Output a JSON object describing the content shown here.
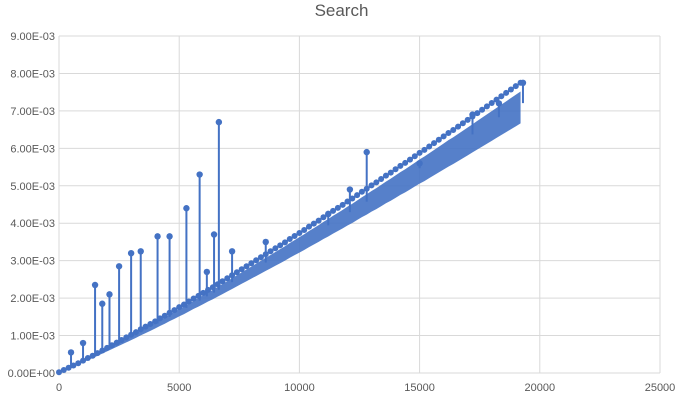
{
  "chart_data": {
    "type": "scatter",
    "title": "Search",
    "xlabel": "",
    "ylabel": "",
    "xlim": [
      0,
      25000
    ],
    "ylim": [
      0,
      0.009
    ],
    "x_ticks": [
      0,
      5000,
      10000,
      15000,
      20000,
      25000
    ],
    "x_tick_labels": [
      "0",
      "5000",
      "10000",
      "15000",
      "20000",
      "25000"
    ],
    "y_ticks": [
      0,
      0.001,
      0.002,
      0.003,
      0.004,
      0.005,
      0.006,
      0.007,
      0.008,
      0.009
    ],
    "y_tick_labels": [
      "0.00E+00",
      "1.00E-03",
      "2.00E-03",
      "3.00E-03",
      "4.00E-03",
      "5.00E-03",
      "6.00E-03",
      "7.00E-03",
      "8.00E-03",
      "9.00E-03"
    ],
    "grid": true,
    "legend": "none",
    "marker": "circle",
    "line_connected": true,
    "color": "#4472C4",
    "series": [
      {
        "x": [
          0,
          200,
          400,
          600,
          800,
          1000,
          1200,
          1400,
          1600,
          1800,
          2000,
          2200,
          2400,
          2600,
          2800,
          3000,
          3200,
          3400,
          3600,
          3800,
          4000,
          4200,
          4400,
          4600,
          4800,
          5000,
          5200,
          5400,
          5600,
          5800,
          6000,
          6200,
          6400,
          6600,
          6800,
          7000,
          7200,
          7400,
          7600,
          7800,
          8000,
          8200,
          8400,
          8600,
          8800,
          9000,
          9200,
          9400,
          9600,
          9800,
          10000,
          10200,
          10400,
          10600,
          10800,
          11000,
          11200,
          11400,
          11600,
          11800,
          12000,
          12200,
          12400,
          12600,
          12800,
          13000,
          13200,
          13400,
          13600,
          13800,
          14000,
          14200,
          14400,
          14600,
          14800,
          15000,
          15200,
          15400,
          15600,
          15800,
          16000,
          16200,
          16400,
          16600,
          16800,
          17000,
          17200,
          17400,
          17600,
          17800,
          18000,
          18200,
          18400,
          18600,
          18800,
          19000,
          19200
        ],
        "y": [
          2e-05,
          8e-05,
          0.00014,
          0.0002,
          0.00026,
          0.00033,
          0.0004,
          0.00046,
          0.00053,
          0.0006,
          0.00067,
          0.00074,
          0.00081,
          0.00088,
          0.00095,
          0.00102,
          0.00109,
          0.00117,
          0.00124,
          0.00131,
          0.00138,
          0.00146,
          0.00153,
          0.00161,
          0.00168,
          0.00176,
          0.00183,
          0.00191,
          0.00199,
          0.00206,
          0.00214,
          0.00222,
          0.00229,
          0.00237,
          0.00245,
          0.00253,
          0.00261,
          0.00269,
          0.00277,
          0.00285,
          0.00293,
          0.00301,
          0.00309,
          0.00317,
          0.00325,
          0.00333,
          0.00341,
          0.00349,
          0.00358,
          0.00366,
          0.00374,
          0.00382,
          0.00391,
          0.00399,
          0.00407,
          0.00416,
          0.00424,
          0.00433,
          0.00441,
          0.00449,
          0.00458,
          0.00466,
          0.00475,
          0.00484,
          0.00492,
          0.00501,
          0.00509,
          0.00518,
          0.00527,
          0.00535,
          0.00544,
          0.00553,
          0.00561,
          0.0057,
          0.00579,
          0.00588,
          0.00596,
          0.00605,
          0.00614,
          0.00623,
          0.00632,
          0.00641,
          0.00649,
          0.00658,
          0.00667,
          0.00676,
          0.00685,
          0.00694,
          0.00703,
          0.00712,
          0.00721,
          0.0073,
          0.00739,
          0.00748,
          0.00757,
          0.00766,
          0.00775
        ]
      }
    ],
    "spikes": [
      {
        "x": 500,
        "y": 0.00055
      },
      {
        "x": 1000,
        "y": 0.0008
      },
      {
        "x": 1500,
        "y": 0.00235
      },
      {
        "x": 1800,
        "y": 0.00185
      },
      {
        "x": 2100,
        "y": 0.0021
      },
      {
        "x": 2500,
        "y": 0.00285
      },
      {
        "x": 3000,
        "y": 0.0032
      },
      {
        "x": 3400,
        "y": 0.00325
      },
      {
        "x": 4100,
        "y": 0.00365
      },
      {
        "x": 4600,
        "y": 0.00365
      },
      {
        "x": 5300,
        "y": 0.0044
      },
      {
        "x": 5850,
        "y": 0.0053
      },
      {
        "x": 6150,
        "y": 0.0027
      },
      {
        "x": 6450,
        "y": 0.0037
      },
      {
        "x": 6650,
        "y": 0.0067
      },
      {
        "x": 7200,
        "y": 0.00325
      },
      {
        "x": 8600,
        "y": 0.0035
      },
      {
        "x": 11200,
        "y": 0.00425
      },
      {
        "x": 12100,
        "y": 0.0049
      },
      {
        "x": 12800,
        "y": 0.0059
      },
      {
        "x": 15000,
        "y": 0.0056
      },
      {
        "x": 17200,
        "y": 0.0069
      },
      {
        "x": 18300,
        "y": 0.0072
      },
      {
        "x": 19300,
        "y": 0.00775
      }
    ]
  }
}
